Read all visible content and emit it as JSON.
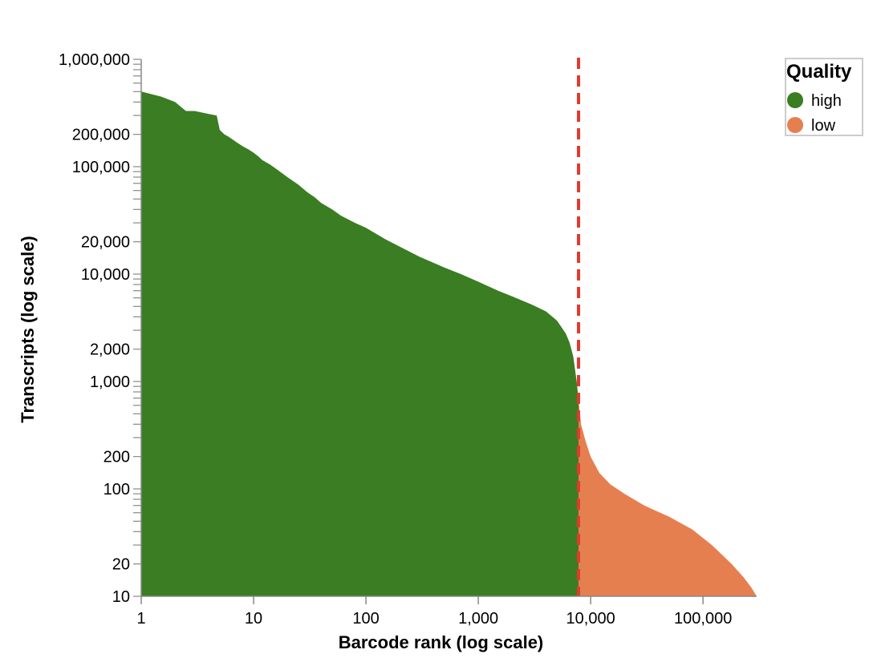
{
  "chart_data": {
    "type": "area",
    "title": "",
    "xlabel": "Barcode rank (log scale)",
    "ylabel": "Transcripts (log scale)",
    "x_scale": "log",
    "y_scale": "log",
    "xlim": [
      1,
      300000
    ],
    "ylim": [
      10,
      1000000
    ],
    "x_ticks": [
      {
        "value": 1,
        "label": "1"
      },
      {
        "value": 10,
        "label": "10"
      },
      {
        "value": 100,
        "label": "100"
      },
      {
        "value": 1000,
        "label": "1,000"
      },
      {
        "value": 10000,
        "label": "10,000"
      },
      {
        "value": 100000,
        "label": "100,000"
      }
    ],
    "y_ticks": [
      {
        "value": 1000000,
        "label": "1,000,000"
      },
      {
        "value": 200000,
        "label": "200,000"
      },
      {
        "value": 100000,
        "label": "100,000"
      },
      {
        "value": 20000,
        "label": "20,000"
      },
      {
        "value": 10000,
        "label": "10,000"
      },
      {
        "value": 2000,
        "label": "2,000"
      },
      {
        "value": 1000,
        "label": "1,000"
      },
      {
        "value": 200,
        "label": "200"
      },
      {
        "value": 100,
        "label": "100"
      },
      {
        "value": 20,
        "label": "20"
      },
      {
        "value": 10,
        "label": "10"
      }
    ],
    "grid": false,
    "threshold": {
      "x": 7800,
      "color": "#e03a2f",
      "style": "dashed"
    },
    "legend": {
      "title": "Quality",
      "position": "top-right"
    },
    "series": [
      {
        "name": "high",
        "color": "#3a7d22",
        "x": [
          1,
          1.5,
          2,
          2.5,
          3,
          4,
          4.7,
          5,
          5.5,
          6,
          7,
          8,
          9,
          10,
          11,
          12,
          14,
          16,
          20,
          25,
          30,
          35,
          40,
          50,
          60,
          80,
          100,
          150,
          200,
          300,
          500,
          700,
          1000,
          1500,
          2000,
          3000,
          4000,
          5000,
          5500,
          6000,
          6500,
          7000,
          7500,
          7800
        ],
        "y": [
          500000,
          450000,
          400000,
          330000,
          330000,
          310000,
          300000,
          220000,
          200000,
          190000,
          170000,
          155000,
          145000,
          135000,
          125000,
          115000,
          105000,
          95000,
          80000,
          68000,
          58000,
          52000,
          46000,
          40000,
          35000,
          30000,
          27000,
          21000,
          18000,
          14500,
          11500,
          10000,
          8500,
          7000,
          6200,
          5200,
          4500,
          3700,
          3200,
          2800,
          2300,
          1700,
          1000,
          680
        ]
      },
      {
        "name": "low",
        "color": "#e67f4f",
        "x": [
          7800,
          8200,
          9000,
          10000,
          12000,
          15000,
          20000,
          30000,
          50000,
          80000,
          120000,
          180000,
          230000,
          270000,
          300000
        ],
        "y": [
          680,
          400,
          280,
          200,
          140,
          110,
          90,
          70,
          55,
          42,
          30,
          20,
          15,
          12,
          10
        ]
      }
    ]
  }
}
